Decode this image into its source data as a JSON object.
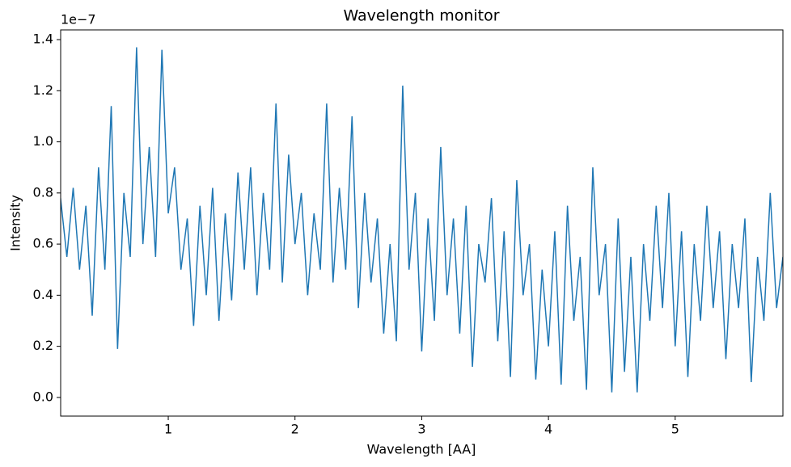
{
  "chart_data": {
    "type": "line",
    "title": "Wavelength monitor",
    "xlabel": "Wavelength [AA]",
    "ylabel": "Intensity",
    "y_offset_text": "1e−7",
    "color": "#1f77b4",
    "x": [
      0.15,
      0.2,
      0.25,
      0.3,
      0.35,
      0.4,
      0.45,
      0.5,
      0.55,
      0.6,
      0.65,
      0.7,
      0.75,
      0.8,
      0.85,
      0.9,
      0.95,
      1.0,
      1.05,
      1.1,
      1.15,
      1.2,
      1.25,
      1.3,
      1.35,
      1.4,
      1.45,
      1.5,
      1.55,
      1.6,
      1.65,
      1.7,
      1.75,
      1.8,
      1.85,
      1.9,
      1.95,
      2.0,
      2.05,
      2.1,
      2.15,
      2.2,
      2.25,
      2.3,
      2.35,
      2.4,
      2.45,
      2.5,
      2.55,
      2.6,
      2.65,
      2.7,
      2.75,
      2.8,
      2.85,
      2.9,
      2.95,
      3.0,
      3.05,
      3.1,
      3.15,
      3.2,
      3.25,
      3.3,
      3.35,
      3.4,
      3.45,
      3.5,
      3.55,
      3.6,
      3.65,
      3.7,
      3.75,
      3.8,
      3.85,
      3.9,
      3.95,
      4.0,
      4.05,
      4.1,
      4.15,
      4.2,
      4.25,
      4.3,
      4.35,
      4.4,
      4.45,
      4.5,
      4.55,
      4.6,
      4.65,
      4.7,
      4.75,
      4.8,
      4.85,
      4.9,
      4.95,
      5.0,
      5.05,
      5.1,
      5.15,
      5.2,
      5.25,
      5.3,
      5.35,
      5.4,
      5.45,
      5.5,
      5.55,
      5.6,
      5.65,
      5.7,
      5.75,
      5.8,
      5.85
    ],
    "values": [
      0.78,
      0.55,
      0.82,
      0.5,
      0.75,
      0.32,
      0.9,
      0.5,
      1.14,
      0.19,
      0.8,
      0.55,
      1.37,
      0.6,
      0.98,
      0.55,
      1.36,
      0.72,
      0.9,
      0.5,
      0.7,
      0.28,
      0.75,
      0.4,
      0.82,
      0.3,
      0.72,
      0.38,
      0.88,
      0.5,
      0.9,
      0.4,
      0.8,
      0.5,
      1.15,
      0.45,
      0.95,
      0.6,
      0.8,
      0.4,
      0.72,
      0.5,
      1.15,
      0.45,
      0.82,
      0.5,
      1.1,
      0.35,
      0.8,
      0.45,
      0.7,
      0.25,
      0.6,
      0.22,
      1.22,
      0.5,
      0.8,
      0.18,
      0.7,
      0.3,
      0.98,
      0.4,
      0.7,
      0.25,
      0.75,
      0.12,
      0.6,
      0.45,
      0.78,
      0.22,
      0.65,
      0.08,
      0.85,
      0.4,
      0.6,
      0.07,
      0.5,
      0.2,
      0.65,
      0.05,
      0.75,
      0.3,
      0.55,
      0.03,
      0.9,
      0.4,
      0.6,
      0.02,
      0.7,
      0.1,
      0.55,
      0.02,
      0.6,
      0.3,
      0.75,
      0.35,
      0.8,
      0.2,
      0.65,
      0.08,
      0.6,
      0.3,
      0.75,
      0.35,
      0.65,
      0.15,
      0.6,
      0.35,
      0.7,
      0.06,
      0.55,
      0.3,
      0.8,
      0.35,
      0.55
    ],
    "xlim": [
      0.151,
      5.85
    ],
    "xticks": [
      1,
      2,
      3,
      4,
      5
    ],
    "ylim": [
      -0.073,
      1.438
    ],
    "yticks": [
      {
        "value": 0,
        "label": "0.0"
      },
      0.2,
      0.4,
      0.6,
      0.8,
      {
        "value": 1,
        "label": "1.0"
      },
      1.2,
      1.4
    ]
  }
}
